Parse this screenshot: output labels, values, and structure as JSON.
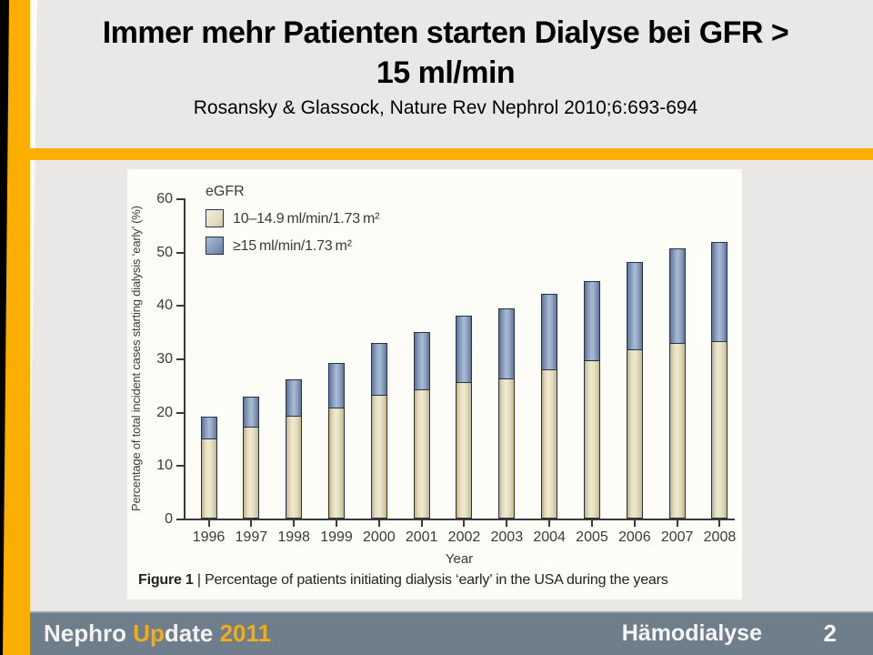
{
  "header": {
    "title_line1": "Immer mehr Patienten starten Dialyse bei GFR >",
    "title_line2": "15 ml/min",
    "subtitle": "Rosansky & Glassock, Nature Rev Nephrol 2010;6:693-694"
  },
  "figure": {
    "caption_bold": "Figure 1",
    "caption_rest": " | Percentage of patients initiating dialysis ‘early’ in the USA during the years"
  },
  "chart_data": {
    "type": "bar",
    "stacked": true,
    "title": "",
    "legend_title": "eGFR",
    "legend_position": "top-left",
    "grid": false,
    "categories": [
      "1996",
      "1997",
      "1998",
      "1999",
      "2000",
      "2001",
      "2002",
      "2003",
      "2004",
      "2005",
      "2006",
      "2007",
      "2008"
    ],
    "series": [
      {
        "name": "10–14.9 ml/min/1.73 m²",
        "color": "#e6dec0",
        "values": [
          15.0,
          17.2,
          19.3,
          20.8,
          23.2,
          24.2,
          25.6,
          26.3,
          28.0,
          29.6,
          31.7,
          32.9,
          33.3
        ]
      },
      {
        "name": "≥15 ml/min/1.73 m²",
        "color": "#8ba0c0",
        "values": [
          4.3,
          5.8,
          6.9,
          8.6,
          9.9,
          10.9,
          12.6,
          13.3,
          14.3,
          15.0,
          16.5,
          17.9,
          18.7
        ]
      }
    ],
    "totals": [
      19.3,
      23.0,
      26.2,
      29.4,
      33.1,
      35.1,
      38.2,
      39.6,
      42.3,
      44.6,
      48.2,
      50.8,
      52.0
    ],
    "xlabel": "Year",
    "ylabel": "Percentage of total incident cases starting dialysis ‘early’ (%)",
    "ylim": [
      0,
      60
    ],
    "yticks": [
      0,
      10,
      20,
      30,
      40,
      50,
      60
    ]
  },
  "footer": {
    "brand_part1": "Nephro ",
    "brand_part2": "Up",
    "brand_part3": "date ",
    "brand_part4": "2011",
    "section_label": "Hämodialyse",
    "page_number": "2"
  },
  "colors": {
    "accent_orange": "#f9ae00",
    "footer_slate": "#6e7f8b",
    "footer_gold": "#f3ab1b",
    "slide_background": "#e9e8e6",
    "panel_background": "#fdfdf8",
    "bar_tan": "#e6dec0",
    "bar_blue": "#8ba0c0"
  }
}
